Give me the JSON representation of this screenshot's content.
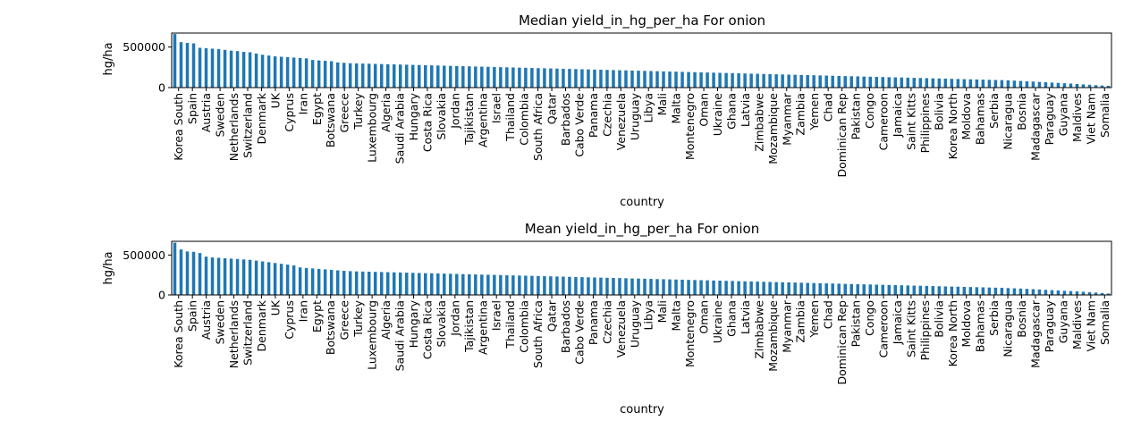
{
  "chart_data": [
    {
      "type": "bar",
      "title": "Median yield_in_hg_per_ha For onion",
      "xlabel": "country",
      "ylabel": "hg/ha",
      "ylim": [
        0,
        672000
      ],
      "yticks": [
        0,
        500000
      ],
      "ytick_labels": [
        "0",
        "500000"
      ],
      "color": "#1f77b4",
      "shown_labels": [
        "Korea South",
        "Spain",
        "Austria",
        "Sweden",
        "Netherlands",
        "Switzerland",
        "Denmark",
        "UK",
        "Cyprus",
        "Iran",
        "Egypt",
        "Botswana",
        "Greece",
        "Turkey",
        "Luxembourg",
        "Algeria",
        "Saudi Arabia",
        "Hungary",
        "Costa Rica",
        "Slovakia",
        "Jordan",
        "Tajikistan",
        "Argentina",
        "Israel",
        "Thailand",
        "Colombia",
        "South Africa",
        "Qatar",
        "Barbados",
        "Cabo Verde",
        "Panama",
        "Czechia",
        "Venezuela",
        "Uruguay",
        "Libya",
        "Mali",
        "Malta",
        "Montenegro",
        "Oman",
        "Ukraine",
        "Ghana",
        "Latvia",
        "Zimbabwe",
        "Mozambique",
        "Myanmar",
        "Zambia",
        "Yemen",
        "Chad",
        "Dominican Rep",
        "Pakistan",
        "Congo",
        "Cameroon",
        "Jamaica",
        "Saint Kitts",
        "Philippines",
        "Bolivia",
        "Korea North",
        "Moldova",
        "Bahamas",
        "Serbia",
        "Nicaragua",
        "Bosnia",
        "Madagascar",
        "Paraguay",
        "Guyana",
        "Maldives",
        "Viet Nam",
        "Somalia"
      ],
      "values": [
        660000,
        560000,
        550000,
        545000,
        490000,
        485000,
        480000,
        475000,
        465000,
        455000,
        450000,
        440000,
        435000,
        420000,
        405000,
        395000,
        385000,
        380000,
        375000,
        370000,
        365000,
        360000,
        340000,
        335000,
        330000,
        325000,
        310000,
        305000,
        300000,
        298000,
        296000,
        294000,
        292000,
        290000,
        288000,
        286000,
        284000,
        282000,
        280000,
        278000,
        276000,
        274000,
        272000,
        270000,
        268000,
        266000,
        264000,
        262000,
        260000,
        258000,
        256000,
        254000,
        252000,
        250000,
        248000,
        246000,
        244000,
        242000,
        240000,
        238000,
        236000,
        234000,
        232000,
        230000,
        228000,
        226000,
        224000,
        222000,
        220000,
        218000,
        216000,
        214000,
        212000,
        210000,
        208000,
        206000,
        204000,
        202000,
        200000,
        198000,
        196000,
        194000,
        192000,
        190000,
        188000,
        186000,
        184000,
        182000,
        180000,
        178000,
        176000,
        174000,
        172000,
        170000,
        168000,
        166000,
        164000,
        162000,
        160000,
        158000,
        156000,
        154000,
        152000,
        150000,
        148000,
        146000,
        144000,
        142000,
        140000,
        138000,
        136000,
        134000,
        132000,
        130000,
        128000,
        126000,
        124000,
        122000,
        120000,
        118000,
        116000,
        114000,
        112000,
        110000,
        108000,
        106000,
        104000,
        102000,
        100000,
        98000,
        96000,
        94000,
        92000,
        90000,
        86000,
        82000,
        78000,
        74000,
        70000,
        66000,
        62000,
        58000,
        54000,
        50000,
        45000,
        40000,
        35000,
        30000,
        26000,
        22000
      ]
    },
    {
      "type": "bar",
      "title": "Mean yield_in_hg_per_ha For onion",
      "xlabel": "country",
      "ylabel": "hg/ha",
      "ylim": [
        0,
        672000
      ],
      "yticks": [
        0,
        500000
      ],
      "ytick_labels": [
        "0",
        "500000"
      ],
      "color": "#1f77b4",
      "shown_labels": [
        "Korea South",
        "Spain",
        "Austria",
        "Sweden",
        "Netherlands",
        "Switzerland",
        "Denmark",
        "UK",
        "Cyprus",
        "Iran",
        "Egypt",
        "Botswana",
        "Greece",
        "Turkey",
        "Luxembourg",
        "Algeria",
        "Saudi Arabia",
        "Hungary",
        "Costa Rica",
        "Slovakia",
        "Jordan",
        "Tajikistan",
        "Argentina",
        "Israel",
        "Thailand",
        "Colombia",
        "South Africa",
        "Qatar",
        "Barbados",
        "Cabo Verde",
        "Panama",
        "Czechia",
        "Venezuela",
        "Uruguay",
        "Libya",
        "Mali",
        "Malta",
        "Montenegro",
        "Oman",
        "Ukraine",
        "Ghana",
        "Latvia",
        "Zimbabwe",
        "Mozambique",
        "Myanmar",
        "Zambia",
        "Yemen",
        "Chad",
        "Dominican Rep",
        "Pakistan",
        "Congo",
        "Cameroon",
        "Jamaica",
        "Saint Kitts",
        "Philippines",
        "Bolivia",
        "Korea North",
        "Moldova",
        "Bahamas",
        "Serbia",
        "Nicaragua",
        "Bosnia",
        "Madagascar",
        "Paraguay",
        "Guyana",
        "Maldives",
        "Viet Nam",
        "Somalia"
      ],
      "values": [
        655000,
        570000,
        545000,
        540000,
        525000,
        480000,
        470000,
        465000,
        460000,
        455000,
        450000,
        445000,
        440000,
        430000,
        420000,
        410000,
        400000,
        390000,
        380000,
        370000,
        345000,
        338000,
        332000,
        326000,
        320000,
        314000,
        308000,
        302000,
        298000,
        295000,
        293000,
        291000,
        289000,
        287000,
        285000,
        283000,
        281000,
        279000,
        277000,
        275000,
        273000,
        271000,
        269000,
        267000,
        265000,
        263000,
        261000,
        259000,
        257000,
        255000,
        253000,
        251000,
        249000,
        247000,
        245000,
        243000,
        241000,
        239000,
        237000,
        235000,
        233000,
        231000,
        229000,
        227000,
        225000,
        223000,
        221000,
        219000,
        217000,
        215000,
        213000,
        211000,
        209000,
        207000,
        205000,
        203000,
        201000,
        199000,
        197000,
        195000,
        193000,
        191000,
        189000,
        187000,
        185000,
        183000,
        181000,
        179000,
        177000,
        175000,
        173000,
        171000,
        169000,
        167000,
        165000,
        163000,
        161000,
        159000,
        157000,
        155000,
        153000,
        151000,
        149000,
        147000,
        145000,
        143000,
        141000,
        139000,
        137000,
        135000,
        133000,
        131000,
        129000,
        127000,
        125000,
        123000,
        121000,
        119000,
        117000,
        115000,
        113000,
        111000,
        109000,
        107000,
        105000,
        103000,
        101000,
        99000,
        97000,
        95000,
        93000,
        91000,
        89000,
        86000,
        83000,
        80000,
        76000,
        72000,
        68000,
        64000,
        60000,
        56000,
        52000,
        48000,
        44000,
        40000,
        35000,
        30000,
        24000,
        18000
      ]
    }
  ]
}
